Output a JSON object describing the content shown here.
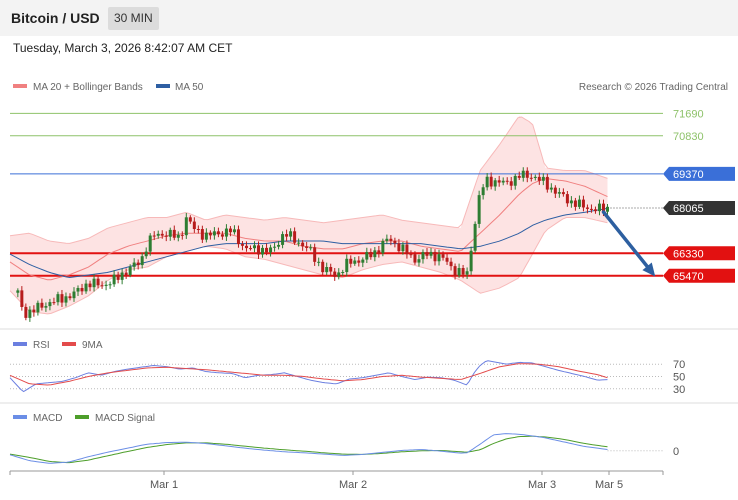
{
  "header": {
    "title": "Bitcoin / USD",
    "timeframe": "30 MIN"
  },
  "timestamp": "Tuesday, March 3, 2026 8:42:07 AM CET",
  "legend": {
    "ma20": "MA 20 + Bollinger Bands",
    "ma50": "MA 50"
  },
  "credit": "Research © 2026 Trading Central",
  "rsi_panel": {
    "legend_rsi": "RSI",
    "legend_ma": "9MA",
    "levels": [
      "70",
      "50",
      "30"
    ]
  },
  "macd_panel": {
    "legend_macd": "MACD",
    "legend_signal": "MACD Signal",
    "zero": "0"
  },
  "x_labels": [
    "Mar 1",
    "Mar 2",
    "Mar 3",
    "Mar 5"
  ],
  "colors": {
    "resistance": "#8ec26a",
    "pivot": "#3a6fd8",
    "support": "#e21111",
    "price_tag": "#333333",
    "bullish": "#2e7d32",
    "bearish": "#b71c1c",
    "bollinger_fill": "#fde3e3",
    "ma20": "#f08080",
    "ma50": "#2e5fa3",
    "rsi": "#6b7fe0",
    "rsi_ma": "#e34b4b",
    "macd": "#6b8ee6",
    "macd_signal": "#4d9e2a",
    "arrow": "#2d5fa0"
  },
  "chart_data": {
    "type": "candlestick",
    "title": "Bitcoin / USD",
    "timeframe": "30 MIN",
    "ylim": [
      63700,
      72200
    ],
    "current_price": 68065,
    "levels": [
      {
        "label": "71690",
        "value": 71690,
        "kind": "resistance"
      },
      {
        "label": "70830",
        "value": 70830,
        "kind": "resistance"
      },
      {
        "label": "69370",
        "value": 69370,
        "kind": "pivot"
      },
      {
        "label": "68065",
        "value": 68065,
        "kind": "last"
      },
      {
        "label": "66330",
        "value": 66330,
        "kind": "support"
      },
      {
        "label": "65470",
        "value": 65470,
        "kind": "support"
      }
    ],
    "forecast_arrow": {
      "from": [
        0.915,
        68065
      ],
      "to": [
        0.99,
        65470
      ]
    },
    "close_path": [
      [
        0.0,
        66050
      ],
      [
        0.02,
        64000
      ],
      [
        0.04,
        64200
      ],
      [
        0.06,
        64450
      ],
      [
        0.08,
        64600
      ],
      [
        0.1,
        64800
      ],
      [
        0.12,
        65200
      ],
      [
        0.14,
        65100
      ],
      [
        0.16,
        65300
      ],
      [
        0.18,
        65700
      ],
      [
        0.2,
        66000
      ],
      [
        0.21,
        66700
      ],
      [
        0.22,
        67000
      ],
      [
        0.24,
        67100
      ],
      [
        0.26,
        66900
      ],
      [
        0.27,
        67700
      ],
      [
        0.28,
        67300
      ],
      [
        0.3,
        67000
      ],
      [
        0.32,
        67100
      ],
      [
        0.34,
        67200
      ],
      [
        0.36,
        66500
      ],
      [
        0.38,
        66500
      ],
      [
        0.4,
        66400
      ],
      [
        0.42,
        67100
      ],
      [
        0.44,
        66800
      ],
      [
        0.46,
        66400
      ],
      [
        0.48,
        65700
      ],
      [
        0.5,
        65500
      ],
      [
        0.52,
        66000
      ],
      [
        0.54,
        66100
      ],
      [
        0.56,
        66400
      ],
      [
        0.58,
        66900
      ],
      [
        0.6,
        66500
      ],
      [
        0.62,
        66100
      ],
      [
        0.64,
        66300
      ],
      [
        0.66,
        66200
      ],
      [
        0.68,
        65700
      ],
      [
        0.7,
        65500
      ],
      [
        0.71,
        67200
      ],
      [
        0.72,
        68700
      ],
      [
        0.73,
        69100
      ],
      [
        0.74,
        69100
      ],
      [
        0.76,
        69000
      ],
      [
        0.78,
        69300
      ],
      [
        0.8,
        69300
      ],
      [
        0.82,
        69000
      ],
      [
        0.84,
        68600
      ],
      [
        0.86,
        68300
      ],
      [
        0.88,
        68100
      ],
      [
        0.9,
        68000
      ],
      [
        0.915,
        68065
      ]
    ],
    "upper_band": [
      [
        0.0,
        67000
      ],
      [
        0.03,
        67100
      ],
      [
        0.06,
        66800
      ],
      [
        0.09,
        66700
      ],
      [
        0.12,
        66900
      ],
      [
        0.15,
        67300
      ],
      [
        0.18,
        67500
      ],
      [
        0.21,
        67700
      ],
      [
        0.24,
        67700
      ],
      [
        0.27,
        67900
      ],
      [
        0.3,
        67600
      ],
      [
        0.33,
        67800
      ],
      [
        0.36,
        67700
      ],
      [
        0.39,
        67600
      ],
      [
        0.42,
        67700
      ],
      [
        0.45,
        67600
      ],
      [
        0.48,
        67500
      ],
      [
        0.51,
        67600
      ],
      [
        0.54,
        67700
      ],
      [
        0.57,
        67800
      ],
      [
        0.6,
        67600
      ],
      [
        0.63,
        67500
      ],
      [
        0.66,
        67400
      ],
      [
        0.69,
        67300
      ],
      [
        0.72,
        69500
      ],
      [
        0.75,
        70500
      ],
      [
        0.78,
        71600
      ],
      [
        0.8,
        71300
      ],
      [
        0.82,
        69600
      ],
      [
        0.85,
        69500
      ],
      [
        0.88,
        69500
      ],
      [
        0.915,
        69200
      ]
    ],
    "lower_band": [
      [
        0.0,
        64900
      ],
      [
        0.03,
        64100
      ],
      [
        0.06,
        64000
      ],
      [
        0.09,
        64300
      ],
      [
        0.12,
        64700
      ],
      [
        0.15,
        65300
      ],
      [
        0.18,
        65700
      ],
      [
        0.21,
        65800
      ],
      [
        0.24,
        66200
      ],
      [
        0.27,
        66400
      ],
      [
        0.3,
        66600
      ],
      [
        0.33,
        66500
      ],
      [
        0.36,
        66200
      ],
      [
        0.39,
        66100
      ],
      [
        0.42,
        65900
      ],
      [
        0.45,
        65700
      ],
      [
        0.48,
        65500
      ],
      [
        0.51,
        65400
      ],
      [
        0.54,
        65700
      ],
      [
        0.57,
        65900
      ],
      [
        0.6,
        66000
      ],
      [
        0.63,
        65800
      ],
      [
        0.66,
        65600
      ],
      [
        0.69,
        65300
      ],
      [
        0.72,
        64800
      ],
      [
        0.75,
        65000
      ],
      [
        0.78,
        65400
      ],
      [
        0.8,
        66300
      ],
      [
        0.82,
        67200
      ],
      [
        0.85,
        67700
      ],
      [
        0.88,
        67700
      ],
      [
        0.915,
        67500
      ]
    ],
    "ma20": [
      [
        0.0,
        66000
      ],
      [
        0.03,
        65500
      ],
      [
        0.06,
        65300
      ],
      [
        0.09,
        65500
      ],
      [
        0.12,
        65800
      ],
      [
        0.15,
        66300
      ],
      [
        0.18,
        66600
      ],
      [
        0.21,
        66800
      ],
      [
        0.24,
        67000
      ],
      [
        0.27,
        67100
      ],
      [
        0.3,
        67100
      ],
      [
        0.33,
        67100
      ],
      [
        0.36,
        66900
      ],
      [
        0.39,
        66800
      ],
      [
        0.42,
        66800
      ],
      [
        0.45,
        66600
      ],
      [
        0.48,
        66500
      ],
      [
        0.51,
        66500
      ],
      [
        0.54,
        66700
      ],
      [
        0.57,
        66800
      ],
      [
        0.6,
        66800
      ],
      [
        0.63,
        66600
      ],
      [
        0.66,
        66500
      ],
      [
        0.69,
        66400
      ],
      [
        0.72,
        67100
      ],
      [
        0.75,
        67800
      ],
      [
        0.78,
        68600
      ],
      [
        0.8,
        69000
      ],
      [
        0.82,
        69200
      ],
      [
        0.85,
        69100
      ],
      [
        0.88,
        68900
      ],
      [
        0.915,
        68500
      ]
    ],
    "ma50": [
      [
        0.0,
        66300
      ],
      [
        0.03,
        65900
      ],
      [
        0.06,
        65600
      ],
      [
        0.09,
        65400
      ],
      [
        0.12,
        65500
      ],
      [
        0.15,
        65600
      ],
      [
        0.18,
        65800
      ],
      [
        0.21,
        66000
      ],
      [
        0.24,
        66200
      ],
      [
        0.27,
        66400
      ],
      [
        0.3,
        66600
      ],
      [
        0.33,
        66700
      ],
      [
        0.36,
        66700
      ],
      [
        0.39,
        66700
      ],
      [
        0.42,
        66800
      ],
      [
        0.45,
        66800
      ],
      [
        0.48,
        66800
      ],
      [
        0.51,
        66700
      ],
      [
        0.54,
        66700
      ],
      [
        0.57,
        66700
      ],
      [
        0.6,
        66700
      ],
      [
        0.63,
        66700
      ],
      [
        0.66,
        66600
      ],
      [
        0.69,
        66500
      ],
      [
        0.72,
        66600
      ],
      [
        0.75,
        66800
      ],
      [
        0.78,
        67100
      ],
      [
        0.8,
        67400
      ],
      [
        0.82,
        67600
      ],
      [
        0.85,
        67800
      ],
      [
        0.88,
        67900
      ],
      [
        0.915,
        68050
      ]
    ],
    "rsi": {
      "ylim": [
        15,
        85
      ],
      "levels": [
        70,
        50,
        30
      ],
      "rsi": [
        [
          0.0,
          48
        ],
        [
          0.02,
          25
        ],
        [
          0.04,
          38
        ],
        [
          0.06,
          40
        ],
        [
          0.08,
          42
        ],
        [
          0.1,
          48
        ],
        [
          0.12,
          56
        ],
        [
          0.14,
          52
        ],
        [
          0.16,
          58
        ],
        [
          0.18,
          62
        ],
        [
          0.2,
          65
        ],
        [
          0.22,
          68
        ],
        [
          0.24,
          66
        ],
        [
          0.26,
          62
        ],
        [
          0.28,
          64
        ],
        [
          0.3,
          58
        ],
        [
          0.32,
          56
        ],
        [
          0.34,
          55
        ],
        [
          0.36,
          48
        ],
        [
          0.38,
          52
        ],
        [
          0.4,
          53
        ],
        [
          0.42,
          56
        ],
        [
          0.44,
          50
        ],
        [
          0.46,
          44
        ],
        [
          0.48,
          40
        ],
        [
          0.5,
          38
        ],
        [
          0.52,
          46
        ],
        [
          0.54,
          48
        ],
        [
          0.56,
          52
        ],
        [
          0.58,
          56
        ],
        [
          0.6,
          50
        ],
        [
          0.62,
          45
        ],
        [
          0.64,
          49
        ],
        [
          0.66,
          48
        ],
        [
          0.68,
          44
        ],
        [
          0.7,
          36
        ],
        [
          0.71,
          55
        ],
        [
          0.72,
          68
        ],
        [
          0.73,
          76
        ],
        [
          0.74,
          74
        ],
        [
          0.76,
          70
        ],
        [
          0.78,
          73
        ],
        [
          0.8,
          72
        ],
        [
          0.82,
          66
        ],
        [
          0.84,
          60
        ],
        [
          0.86,
          55
        ],
        [
          0.88,
          50
        ],
        [
          0.9,
          44
        ],
        [
          0.915,
          45
        ]
      ],
      "ma9": [
        [
          0.0,
          52
        ],
        [
          0.03,
          38
        ],
        [
          0.06,
          36
        ],
        [
          0.09,
          42
        ],
        [
          0.12,
          50
        ],
        [
          0.15,
          56
        ],
        [
          0.18,
          60
        ],
        [
          0.21,
          64
        ],
        [
          0.24,
          65
        ],
        [
          0.27,
          63
        ],
        [
          0.3,
          61
        ],
        [
          0.33,
          58
        ],
        [
          0.36,
          55
        ],
        [
          0.39,
          52
        ],
        [
          0.42,
          52
        ],
        [
          0.45,
          50
        ],
        [
          0.48,
          46
        ],
        [
          0.51,
          43
        ],
        [
          0.54,
          45
        ],
        [
          0.57,
          50
        ],
        [
          0.6,
          52
        ],
        [
          0.63,
          49
        ],
        [
          0.66,
          47
        ],
        [
          0.69,
          45
        ],
        [
          0.72,
          55
        ],
        [
          0.75,
          66
        ],
        [
          0.78,
          71
        ],
        [
          0.81,
          70
        ],
        [
          0.84,
          66
        ],
        [
          0.87,
          59
        ],
        [
          0.9,
          53
        ],
        [
          0.915,
          48
        ]
      ]
    },
    "macd": {
      "ylim": [
        -520,
        780
      ],
      "zero": 0,
      "macd": [
        [
          0.0,
          -120
        ],
        [
          0.03,
          -300
        ],
        [
          0.06,
          -380
        ],
        [
          0.09,
          -340
        ],
        [
          0.12,
          -180
        ],
        [
          0.15,
          -40
        ],
        [
          0.18,
          80
        ],
        [
          0.21,
          200
        ],
        [
          0.24,
          250
        ],
        [
          0.27,
          260
        ],
        [
          0.3,
          220
        ],
        [
          0.33,
          150
        ],
        [
          0.36,
          80
        ],
        [
          0.39,
          20
        ],
        [
          0.42,
          -30
        ],
        [
          0.45,
          -60
        ],
        [
          0.48,
          -100
        ],
        [
          0.51,
          -140
        ],
        [
          0.54,
          -110
        ],
        [
          0.57,
          -50
        ],
        [
          0.6,
          10
        ],
        [
          0.63,
          40
        ],
        [
          0.66,
          -10
        ],
        [
          0.69,
          -70
        ],
        [
          0.7,
          -60
        ],
        [
          0.72,
          200
        ],
        [
          0.74,
          480
        ],
        [
          0.76,
          520
        ],
        [
          0.78,
          500
        ],
        [
          0.8,
          450
        ],
        [
          0.82,
          390
        ],
        [
          0.85,
          260
        ],
        [
          0.88,
          130
        ],
        [
          0.915,
          40
        ]
      ],
      "signal": [
        [
          0.0,
          -100
        ],
        [
          0.03,
          -200
        ],
        [
          0.06,
          -320
        ],
        [
          0.09,
          -360
        ],
        [
          0.12,
          -280
        ],
        [
          0.15,
          -150
        ],
        [
          0.18,
          -20
        ],
        [
          0.21,
          100
        ],
        [
          0.24,
          190
        ],
        [
          0.27,
          240
        ],
        [
          0.3,
          240
        ],
        [
          0.33,
          200
        ],
        [
          0.36,
          140
        ],
        [
          0.39,
          80
        ],
        [
          0.42,
          30
        ],
        [
          0.45,
          -10
        ],
        [
          0.48,
          -60
        ],
        [
          0.51,
          -100
        ],
        [
          0.54,
          -110
        ],
        [
          0.57,
          -80
        ],
        [
          0.6,
          -30
        ],
        [
          0.63,
          0
        ],
        [
          0.66,
          10
        ],
        [
          0.69,
          -30
        ],
        [
          0.7,
          -40
        ],
        [
          0.72,
          30
        ],
        [
          0.74,
          220
        ],
        [
          0.76,
          360
        ],
        [
          0.78,
          430
        ],
        [
          0.8,
          440
        ],
        [
          0.82,
          420
        ],
        [
          0.85,
          340
        ],
        [
          0.88,
          220
        ],
        [
          0.915,
          120
        ]
      ]
    }
  }
}
